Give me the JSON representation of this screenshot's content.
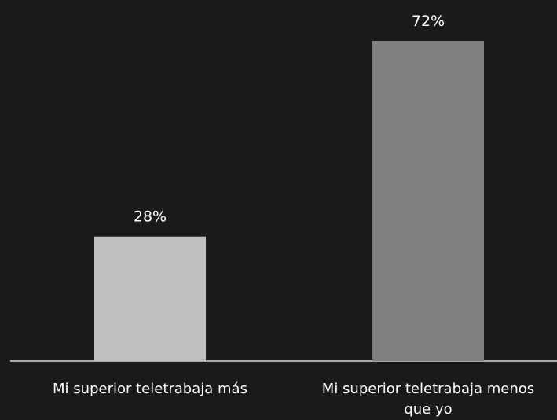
{
  "chart_data": {
    "type": "bar",
    "categories": [
      [
        "Mi superior teletrabaja más"
      ],
      [
        "Mi superior teletrabaja menos",
        "que yo"
      ]
    ],
    "values": [
      28,
      72
    ],
    "value_labels": [
      "28%",
      "72%"
    ],
    "ylim": [
      0,
      72
    ],
    "colors": [
      "#c0c0c0",
      "#7f7f7f"
    ],
    "axis_color": "#d9d9d9",
    "background": "#1a1a1a",
    "grid": false,
    "legend": "none"
  }
}
